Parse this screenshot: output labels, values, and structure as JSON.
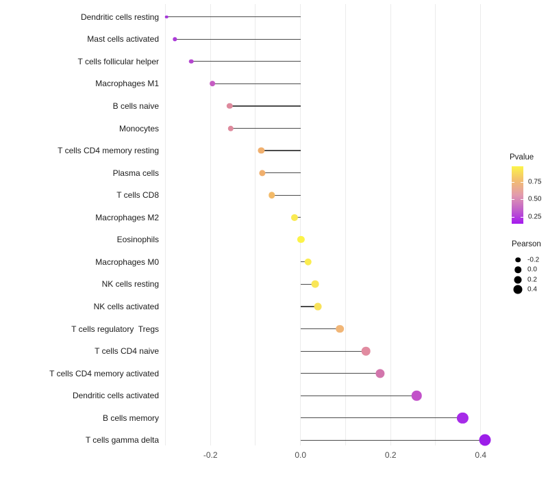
{
  "chart_data": {
    "type": "scatter",
    "variant": "lollipop",
    "title": "",
    "xlabel": "",
    "ylabel": "",
    "xlim": [
      -0.33,
      0.45
    ],
    "grid": "vertical-only",
    "x_ticks": [
      {
        "value": -0.2,
        "label": "-0.2"
      },
      {
        "value": 0.0,
        "label": "0.0"
      },
      {
        "value": 0.2,
        "label": "0.2"
      },
      {
        "value": 0.4,
        "label": "0.4"
      }
    ],
    "x_gridlines": [
      -0.3,
      -0.2,
      -0.1,
      0.0,
      0.1,
      0.2,
      0.3,
      0.4
    ],
    "categories": [
      "Dendritic cells resting",
      "Mast cells activated",
      "T cells follicular helper",
      "Macrophages M1",
      "B cells naive",
      "Monocytes",
      "T cells CD4 memory resting",
      "Plasma cells",
      "T cells CD8",
      "Macrophages M2",
      "Eosinophils",
      "Macrophages M0",
      "NK cells resting",
      "NK cells activated",
      "T cells regulatory  Tregs",
      "T cells CD4 naive",
      "T cells CD4 memory activated",
      "Dendritic cells activated",
      "B cells memory",
      "T cells gamma delta"
    ],
    "points": [
      {
        "label": "Dendritic cells resting",
        "pearson": -0.297,
        "color": "#A435D8",
        "diameter": 4.6
      },
      {
        "label": "Mast cells activated",
        "pearson": -0.279,
        "color": "#AC3BD8",
        "diameter": 5.4
      },
      {
        "label": "T cells follicular helper",
        "pearson": -0.243,
        "color": "#B446CF",
        "diameter": 6.6
      },
      {
        "label": "Macrophages M1",
        "pearson": -0.195,
        "color": "#C55CC2",
        "diameter": 7.8
      },
      {
        "label": "B cells naive",
        "pearson": -0.157,
        "color": "#DE8A9D",
        "diameter": 8.4
      },
      {
        "label": "Monocytes",
        "pearson": -0.155,
        "color": "#DE8A9D",
        "diameter": 8.4
      },
      {
        "label": "T cells CD4 memory resting",
        "pearson": -0.087,
        "color": "#F0AF6D",
        "diameter": 9.2
      },
      {
        "label": "Plasma cells",
        "pearson": -0.085,
        "color": "#F0AF6D",
        "diameter": 9.2
      },
      {
        "label": "T cells CD8",
        "pearson": -0.064,
        "color": "#F3BA68",
        "diameter": 9.5
      },
      {
        "label": "Macrophages M2",
        "pearson": -0.013,
        "color": "#FAEA52",
        "diameter": 10.1
      },
      {
        "label": "Eosinophils",
        "pearson": 0.001,
        "color": "#FCF348",
        "diameter": 10.2
      },
      {
        "label": "Macrophages M0",
        "pearson": 0.017,
        "color": "#FBED50",
        "diameter": 10.5
      },
      {
        "label": "NK cells resting",
        "pearson": 0.033,
        "color": "#F9E657",
        "diameter": 10.8
      },
      {
        "label": "NK cells activated",
        "pearson": 0.039,
        "color": "#F8E25B",
        "diameter": 10.9
      },
      {
        "label": "T cells regulatory  Tregs",
        "pearson": 0.087,
        "color": "#F1B677",
        "diameter": 11.7
      },
      {
        "label": "T cells CD4 naive",
        "pearson": 0.145,
        "color": "#E18BA0",
        "diameter": 12.6
      },
      {
        "label": "T cells CD4 memory activated",
        "pearson": 0.177,
        "color": "#D275AC",
        "diameter": 13.2
      },
      {
        "label": "Dendritic cells activated",
        "pearson": 0.258,
        "color": "#C251C9",
        "diameter": 14.5
      },
      {
        "label": "B cells memory",
        "pearson": 0.36,
        "color": "#A62BE8",
        "diameter": 16.2
      },
      {
        "label": "T cells gamma delta",
        "pearson": 0.41,
        "color": "#9C1EE9",
        "diameter": 17.0
      }
    ],
    "legend": {
      "pvalue": {
        "title": "Pvalue",
        "scale_min": 0.15,
        "scale_max": 0.97,
        "ticks": [
          {
            "value": 0.75,
            "label": "0.75"
          },
          {
            "value": 0.5,
            "label": "0.50"
          },
          {
            "value": 0.25,
            "label": "0.25"
          }
        ],
        "gradient_top_to_bottom": [
          "#FCF44A",
          "#F2BD71",
          "#E29BAD",
          "#C263C9",
          "#A519EF"
        ]
      },
      "pearson": {
        "title": "Pearson",
        "entries": [
          {
            "label": "-0.2",
            "diameter": 7.5
          },
          {
            "label": "0.0",
            "diameter": 9.5
          },
          {
            "label": "0.2",
            "diameter": 11.0
          },
          {
            "label": "0.4",
            "diameter": 13.0
          }
        ]
      }
    },
    "colors": {
      "stem": "#4a4a4a",
      "gridline": "#ebebeb",
      "axis_tick_text": "#4d4d4d",
      "category_text": "#1a1a1a",
      "legend_size_dot": "#000000",
      "background": "#ffffff"
    }
  }
}
